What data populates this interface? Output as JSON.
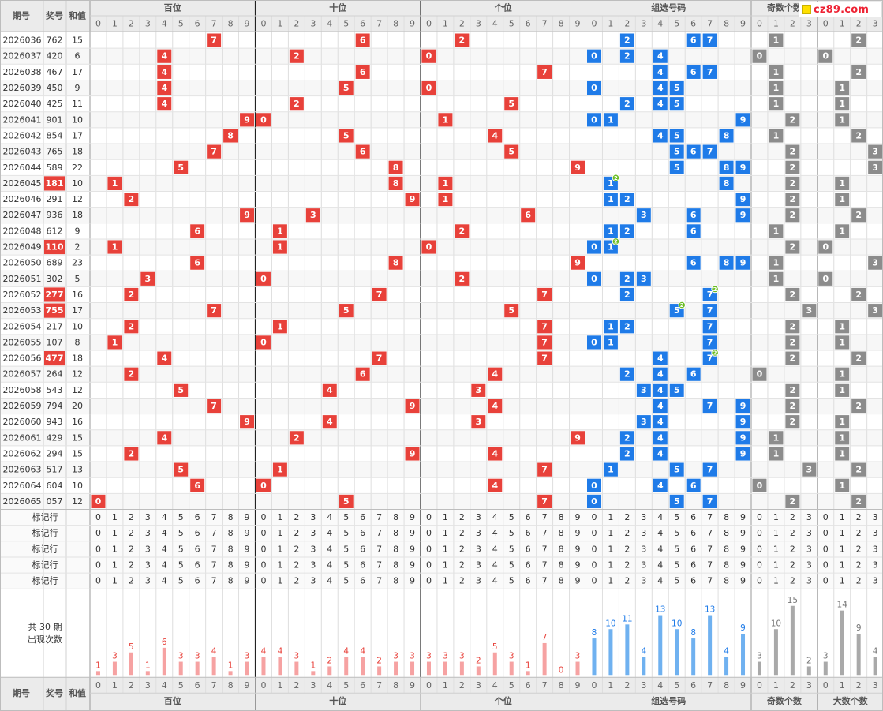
{
  "header": {
    "col_period": "期号",
    "col_prize": "奖号",
    "col_sum": "和值",
    "groups": [
      "百位",
      "十位",
      "个位",
      "组选号码",
      "奇数个数",
      "大数个数"
    ],
    "digits_10": [
      "0",
      "1",
      "2",
      "3",
      "4",
      "5",
      "6",
      "7",
      "8",
      "9"
    ],
    "digits_4": [
      "0",
      "1",
      "2",
      "3"
    ]
  },
  "logo": {
    "text": "cz89.com"
  },
  "marker_row_label": "标记行",
  "stats_label_line1": "共 30 期",
  "stats_label_line2": "出现次数",
  "colors": {
    "red": "#e8413a",
    "blue": "#1f7be8",
    "gray": "#8c8c8c",
    "highlight": "#e8413a",
    "red_bar": "#f6a2a2",
    "blue_bar": "#6fb1f0",
    "gray_bar": "#a9a9a9",
    "red_count": "#e8413a",
    "blue_count": "#1f7be8",
    "gray_count": "#777777",
    "badge": "#6bbd22"
  },
  "chart_data": {
    "type": "table",
    "rows": [
      {
        "period": "2026036",
        "prize": "762",
        "sum": "15"
      },
      {
        "period": "2026037",
        "prize": "420",
        "sum": "6"
      },
      {
        "period": "2026038",
        "prize": "467",
        "sum": "17"
      },
      {
        "period": "2026039",
        "prize": "450",
        "sum": "9"
      },
      {
        "period": "2026040",
        "prize": "425",
        "sum": "11"
      },
      {
        "period": "2026041",
        "prize": "901",
        "sum": "10"
      },
      {
        "period": "2026042",
        "prize": "854",
        "sum": "17"
      },
      {
        "period": "2026043",
        "prize": "765",
        "sum": "18"
      },
      {
        "period": "2026044",
        "prize": "589",
        "sum": "22"
      },
      {
        "period": "2026045",
        "prize": "181",
        "sum": "10"
      },
      {
        "period": "2026046",
        "prize": "291",
        "sum": "12"
      },
      {
        "period": "2026047",
        "prize": "936",
        "sum": "18"
      },
      {
        "period": "2026048",
        "prize": "612",
        "sum": "9"
      },
      {
        "period": "2026049",
        "prize": "110",
        "sum": "2"
      },
      {
        "period": "2026050",
        "prize": "689",
        "sum": "23"
      },
      {
        "period": "2026051",
        "prize": "302",
        "sum": "5"
      },
      {
        "period": "2026052",
        "prize": "277",
        "sum": "16"
      },
      {
        "period": "2026053",
        "prize": "755",
        "sum": "17"
      },
      {
        "period": "2026054",
        "prize": "217",
        "sum": "10"
      },
      {
        "period": "2026055",
        "prize": "107",
        "sum": "8"
      },
      {
        "period": "2026056",
        "prize": "477",
        "sum": "18"
      },
      {
        "period": "2026057",
        "prize": "264",
        "sum": "12"
      },
      {
        "period": "2026058",
        "prize": "543",
        "sum": "12"
      },
      {
        "period": "2026059",
        "prize": "794",
        "sum": "20"
      },
      {
        "period": "2026060",
        "prize": "943",
        "sum": "16"
      },
      {
        "period": "2026061",
        "prize": "429",
        "sum": "15"
      },
      {
        "period": "2026062",
        "prize": "294",
        "sum": "15"
      },
      {
        "period": "2026063",
        "prize": "517",
        "sum": "13"
      },
      {
        "period": "2026064",
        "prize": "604",
        "sum": "10"
      },
      {
        "period": "2026065",
        "prize": "057",
        "sum": "12"
      }
    ],
    "occurrence_counts": {
      "hundreds": [
        1,
        3,
        5,
        1,
        6,
        3,
        3,
        4,
        1,
        3
      ],
      "tens": [
        4,
        4,
        3,
        1,
        2,
        4,
        4,
        2,
        3,
        3
      ],
      "units": [
        3,
        3,
        3,
        2,
        5,
        3,
        1,
        7,
        0,
        3
      ],
      "group": [
        8,
        10,
        11,
        4,
        13,
        10,
        8,
        13,
        4,
        9
      ],
      "odd_count": [
        3,
        10,
        15,
        2
      ],
      "big_count": [
        3,
        14,
        9,
        4
      ]
    }
  }
}
